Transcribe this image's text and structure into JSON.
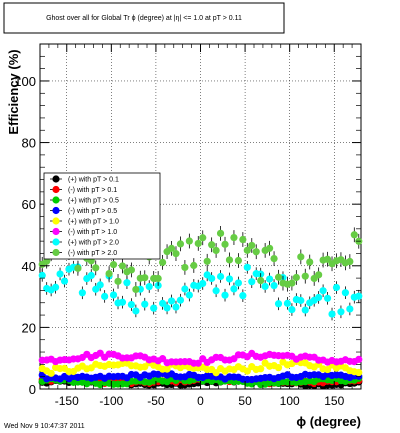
{
  "chart_data": {
    "type": "scatter",
    "title": "Ghost over all for Global Tr ϕ (degree) at |η| <= 1.0 at pT > 0.11",
    "xlabel": "ϕ (degree)",
    "ylabel": "Efficiency (%)",
    "xlim": [
      -180,
      180
    ],
    "ylim": [
      0,
      112
    ],
    "grid": true,
    "legend_position": "left-middle",
    "x_ticks": [
      "-150",
      "-100",
      "-50",
      "0",
      "50",
      "100",
      "150"
    ],
    "x_tick_values": [
      -150,
      -100,
      -50,
      0,
      50,
      100,
      150
    ],
    "y_ticks": [
      "0",
      "20",
      "40",
      "60",
      "80",
      "100"
    ],
    "y_tick_values": [
      0,
      20,
      40,
      60,
      80,
      100
    ],
    "series": [
      {
        "name": "(+) with pT > 0.1",
        "color": "#000000",
        "base": 2.0,
        "amp": 0.5,
        "noise": 0.5
      },
      {
        "name": "(-) with pT > 0.1",
        "color": "#ff0000",
        "base": 2.5,
        "amp": 0.5,
        "noise": 0.5
      },
      {
        "name": "(+) with pT > 0.5",
        "color": "#00cc00",
        "base": 2.5,
        "amp": 0.5,
        "noise": 0.6
      },
      {
        "name": "(-) with pT > 0.5",
        "color": "#0000ff",
        "base": 4.0,
        "amp": 0.5,
        "noise": 0.6
      },
      {
        "name": "(+) with pT > 1.0",
        "color": "#ffff00",
        "base": 7.0,
        "amp": 1.0,
        "noise": 1.0
      },
      {
        "name": "(-) with pT > 1.0",
        "color": "#ff00ff",
        "base": 10.0,
        "amp": 1.0,
        "noise": 0.8
      },
      {
        "name": "(+) with pT > 2.0",
        "color": "#00ffff",
        "base": 32.0,
        "amp": 3.0,
        "noise": 5.0
      },
      {
        "name": "(-) with pT > 2.0",
        "color": "#66cc44",
        "base": 42.0,
        "amp": 4.0,
        "noise": 6.0
      }
    ]
  },
  "footer": {
    "timestamp": "Wed Nov  9 10:47:37 2011"
  }
}
